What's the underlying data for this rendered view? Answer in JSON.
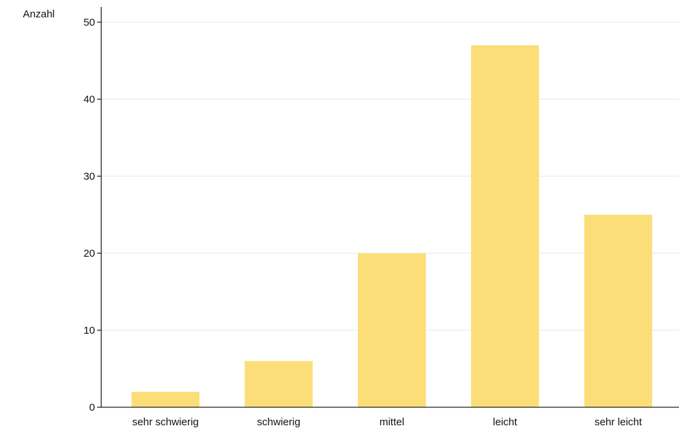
{
  "chart_data": {
    "type": "bar",
    "ylabel": "Anzahl",
    "categories": [
      "sehr schwierig",
      "schwierig",
      "mittel",
      "leicht",
      "sehr leicht"
    ],
    "values": [
      2,
      6,
      20,
      47,
      25
    ],
    "ylim": [
      0,
      50
    ],
    "yticks": [
      0,
      10,
      20,
      30,
      40,
      50
    ],
    "grid": true,
    "colors": {
      "bar": "#fcde78",
      "grid": "#e3edf2",
      "axis": "#222222",
      "background": "#ffffff"
    }
  }
}
